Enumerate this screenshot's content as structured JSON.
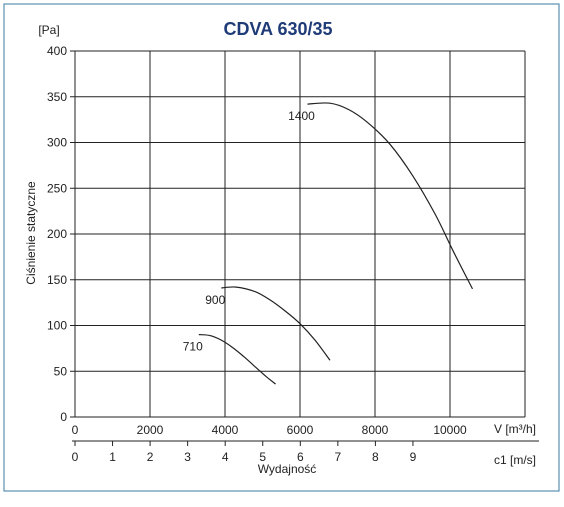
{
  "chart_data": {
    "type": "line",
    "title": "CDVA 630/35",
    "y_unit": "[Pa]",
    "ylabel": "Ciśnienie statyczne",
    "x_unit": "V [m³/h]",
    "x2_unit": "c1 [m/s]",
    "xlabel": "Wydajność",
    "xlim": [
      0,
      12000
    ],
    "ylim": [
      0,
      400
    ],
    "x_ticks": [
      "0",
      "2000",
      "4000",
      "6000",
      "8000",
      "10000"
    ],
    "y_ticks": [
      "0",
      "50",
      "100",
      "150",
      "200",
      "250",
      "300",
      "350",
      "400"
    ],
    "x2_ticks": [
      "0",
      "1",
      "2",
      "3",
      "4",
      "5",
      "6",
      "7",
      "8",
      "9"
    ],
    "grid": true,
    "colors": {
      "accent": "#1f3c78",
      "frame": "#5a8fb4",
      "curve": "#222222",
      "grid": "#222222"
    },
    "series": [
      {
        "name": "710",
        "x": [
          3300,
          3600,
          3900,
          4200,
          4500,
          4800,
          5100,
          5350
        ],
        "y": [
          90,
          89,
          84,
          76,
          66,
          55,
          44,
          36
        ]
      },
      {
        "name": "900",
        "x": [
          3900,
          4300,
          4800,
          5200,
          5600,
          6000,
          6400,
          6800
        ],
        "y": [
          141,
          142,
          137,
          128,
          116,
          102,
          84,
          62
        ]
      },
      {
        "name": "1400",
        "x": [
          6200,
          6800,
          7300,
          7800,
          8400,
          9000,
          9600,
          10100,
          10600
        ],
        "y": [
          342,
          343,
          336,
          322,
          298,
          264,
          222,
          180,
          140
        ]
      }
    ]
  }
}
